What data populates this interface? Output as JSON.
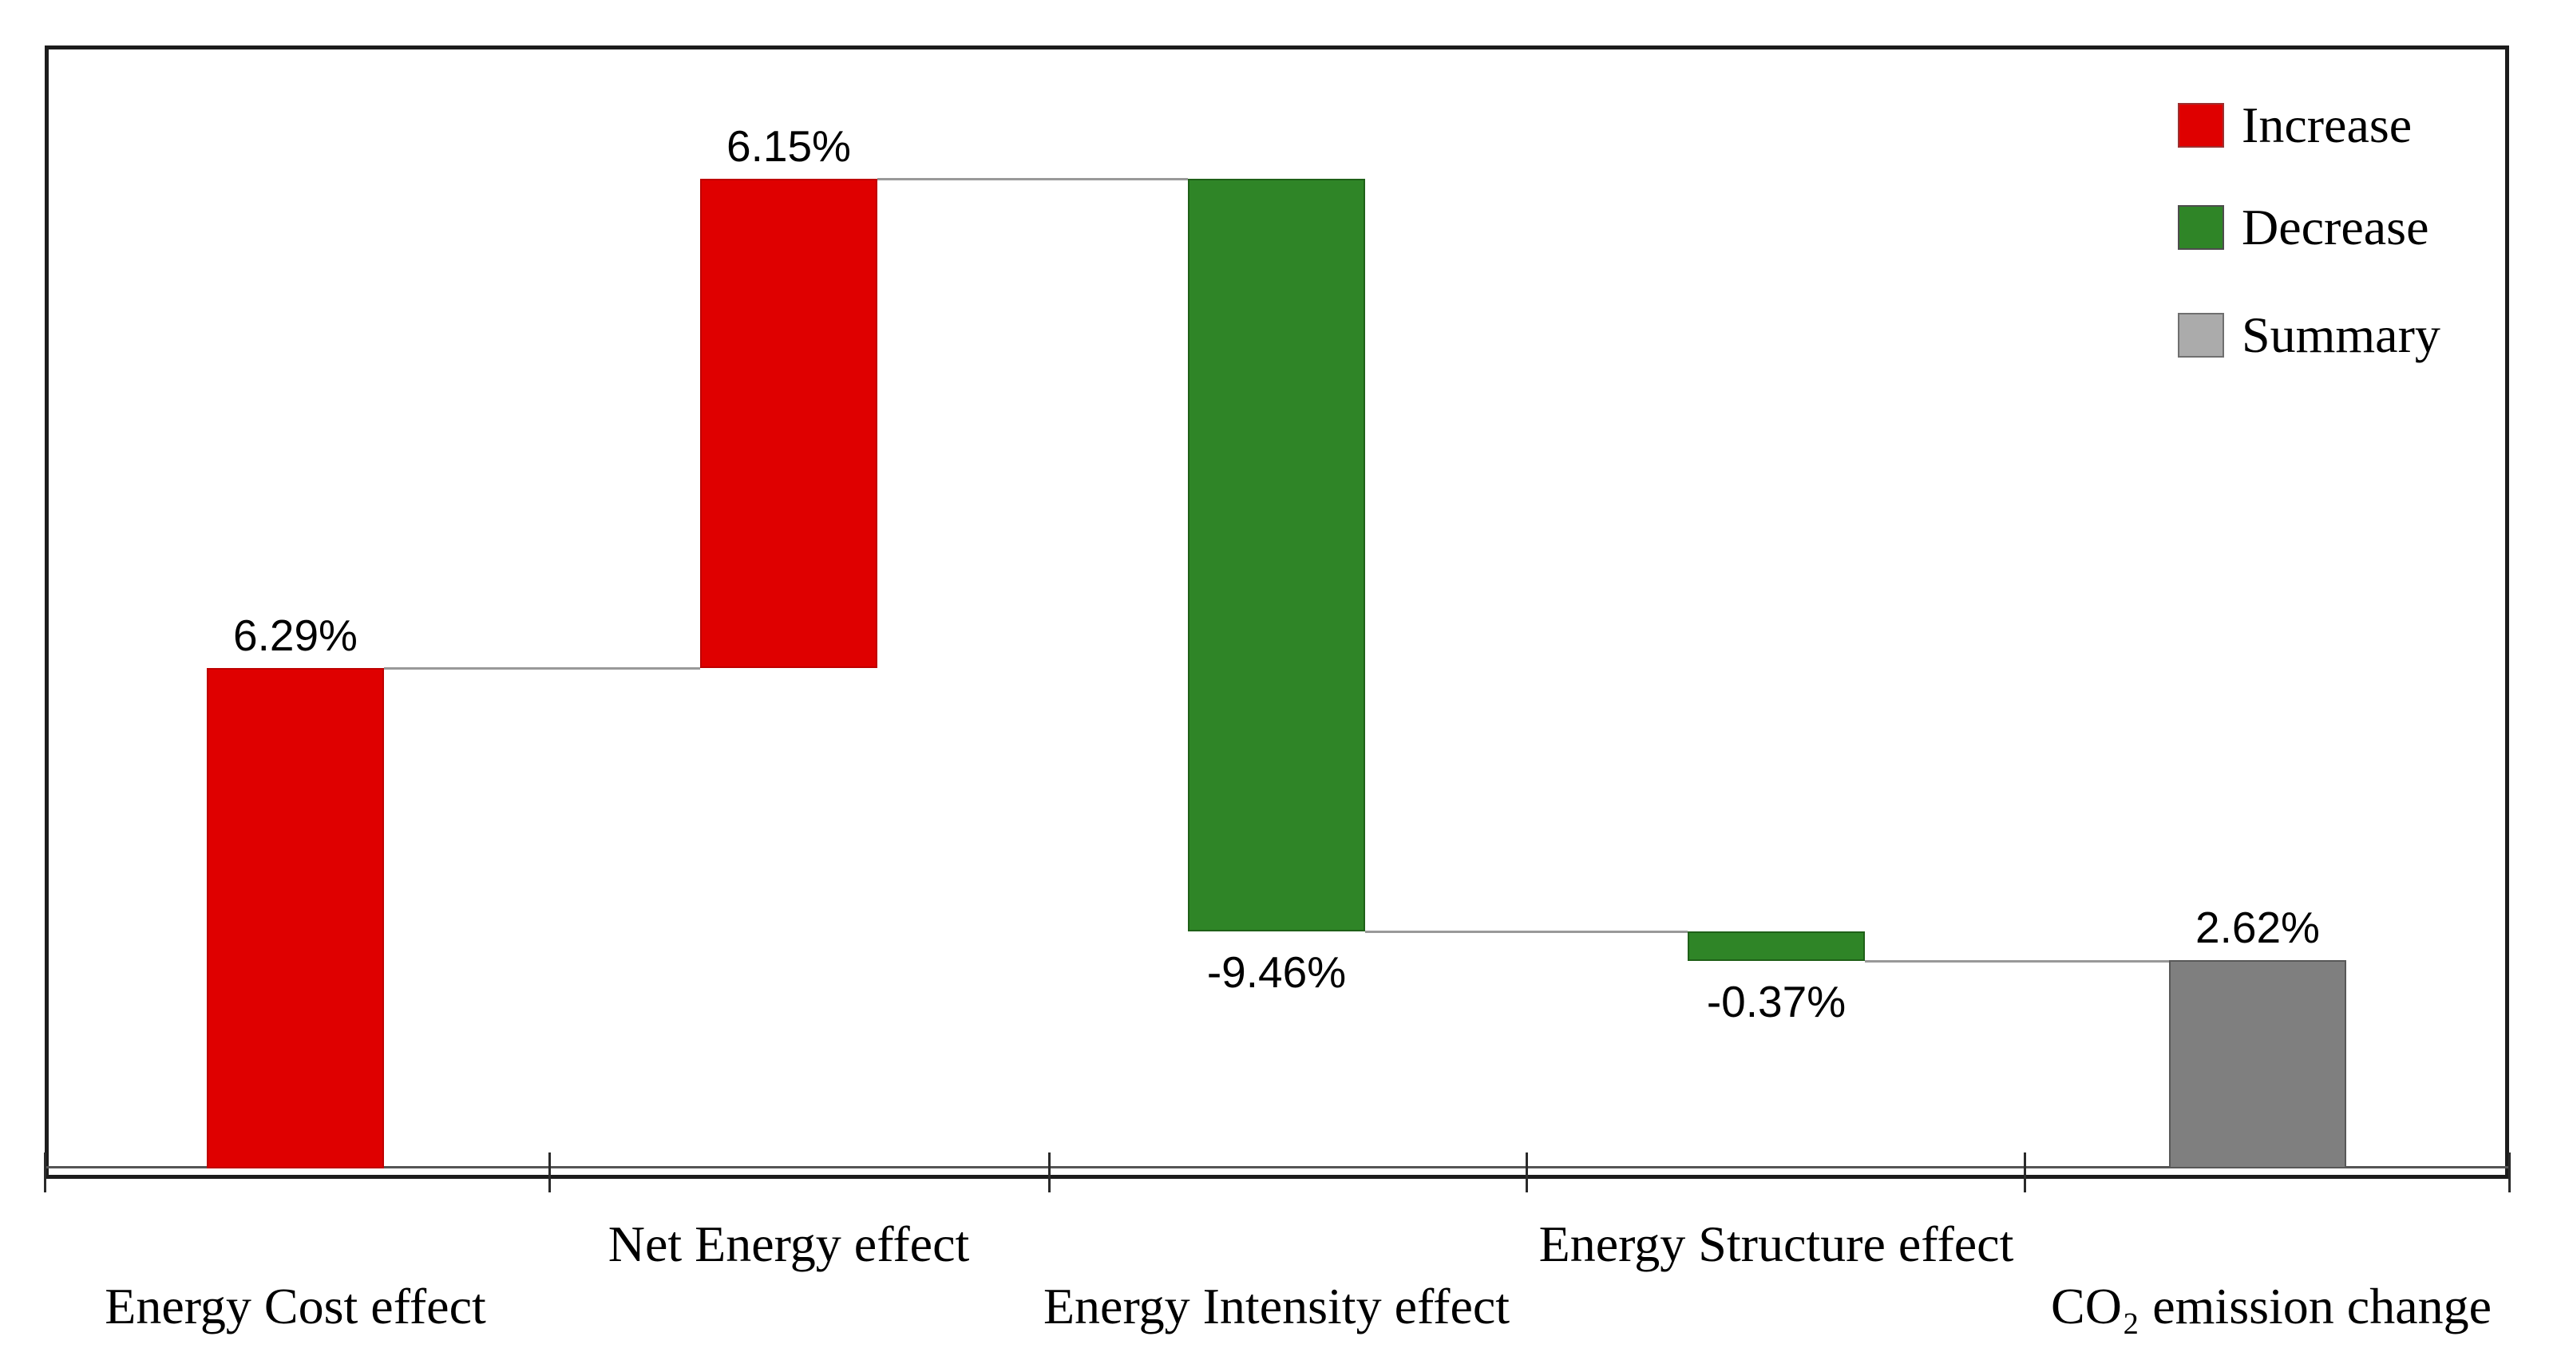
{
  "chart_data": {
    "type": "waterfall",
    "title": "",
    "unit": "%",
    "grid": false,
    "y_axis_shown": false,
    "legend_position": "top-right-inside",
    "categories": [
      "Energy Cost effect",
      "Net Energy effect",
      "Energy Intensity effect",
      "Energy Structure effect",
      "CO₂ emission change"
    ],
    "bars": [
      {
        "category": "Energy Cost effect",
        "value": 6.29,
        "label": "6.29%",
        "kind": "increase",
        "is_total": false,
        "label_side": "above",
        "category_row": "lower"
      },
      {
        "category": "Net Energy effect",
        "value": 6.15,
        "label": "6.15%",
        "kind": "increase",
        "is_total": false,
        "label_side": "above",
        "category_row": "upper"
      },
      {
        "category": "Energy Intensity effect",
        "value": -9.46,
        "label": "-9.46%",
        "kind": "decrease",
        "is_total": false,
        "label_side": "below",
        "category_row": "lower"
      },
      {
        "category": "Energy Structure effect",
        "value": -0.37,
        "label": "-0.37%",
        "kind": "decrease",
        "is_total": false,
        "label_side": "below",
        "category_row": "upper"
      },
      {
        "category": "CO₂ emission change",
        "value": 2.62,
        "label": "2.62%",
        "kind": "summary",
        "is_total": true,
        "label_side": "above",
        "category_row": "lower"
      }
    ],
    "cumulative_levels": [
      6.29,
      12.44,
      2.98,
      2.61,
      2.62
    ],
    "colors": {
      "increase": "#df0000",
      "decrease": "#2f8527",
      "summary": "#7f7f7f"
    },
    "bar_borders": {
      "increase": "#bf0000",
      "decrease": "#1f6018",
      "summary": "#585858"
    },
    "legend": [
      {
        "label": "Increase",
        "color": "#df0000",
        "border": "#9d3030"
      },
      {
        "label": "Decrease",
        "color": "#2f8527",
        "border": "#4d4d4d"
      },
      {
        "label": "Summary",
        "color": "#ababab",
        "border": "#6f6f6f"
      }
    ]
  }
}
